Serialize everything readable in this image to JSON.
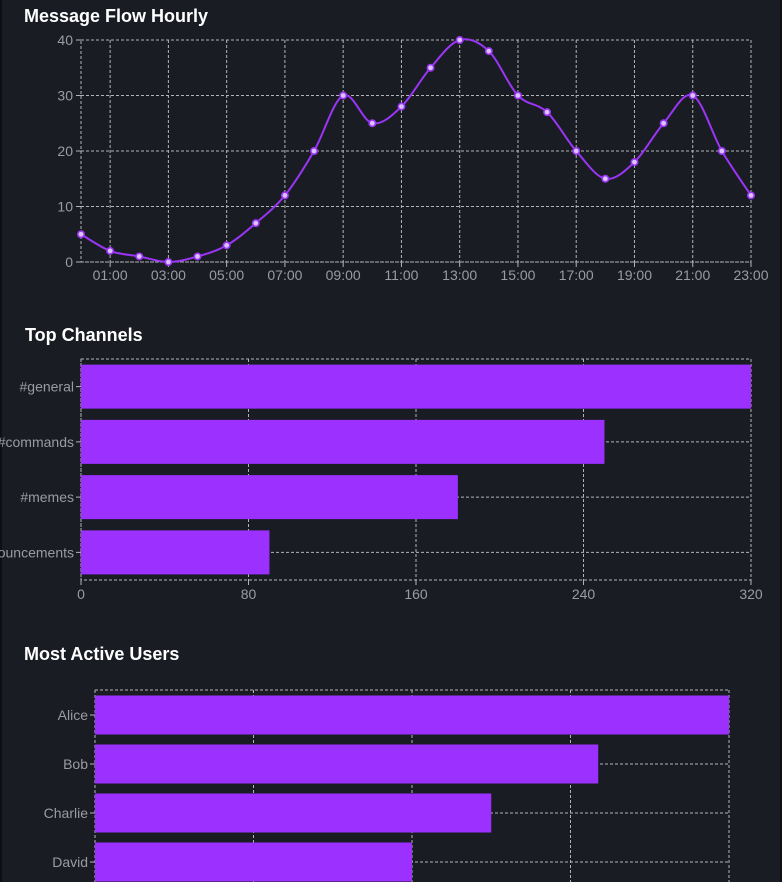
{
  "colors": {
    "background": "#1a1c24",
    "accent": "#9b30ff",
    "line": "#9a35f5",
    "grid": "#b4b4b4",
    "tick_text": "#9a9ba3",
    "title_text": "#ffffff"
  },
  "panels": {
    "hourly_title": "Message Flow Hourly",
    "channels_title": "Top Channels",
    "users_title": "Most Active Users"
  },
  "chart_data": [
    {
      "type": "line",
      "title": "Message Flow Hourly",
      "x": [
        "00:00",
        "01:00",
        "02:00",
        "03:00",
        "04:00",
        "05:00",
        "06:00",
        "07:00",
        "08:00",
        "09:00",
        "10:00",
        "11:00",
        "12:00",
        "13:00",
        "14:00",
        "15:00",
        "16:00",
        "17:00",
        "18:00",
        "19:00",
        "20:00",
        "21:00",
        "22:00",
        "23:00"
      ],
      "x_tick_labels": [
        "01:00",
        "03:00",
        "05:00",
        "07:00",
        "09:00",
        "11:00",
        "13:00",
        "15:00",
        "17:00",
        "19:00",
        "21:00",
        "23:00"
      ],
      "values": [
        5,
        2,
        1,
        0,
        1,
        3,
        7,
        12,
        20,
        30,
        25,
        28,
        35,
        40,
        38,
        30,
        27,
        20,
        15,
        18,
        25,
        30,
        20,
        12
      ],
      "ylim": [
        0,
        40
      ],
      "y_ticks": [
        0,
        10,
        20,
        30,
        40
      ],
      "grid": true,
      "smooth": true,
      "markers": true
    },
    {
      "type": "bar",
      "orientation": "horizontal",
      "title": "Top Channels",
      "categories": [
        "#general",
        "#commands",
        "#memes",
        "#announcements"
      ],
      "values": [
        320,
        250,
        180,
        90
      ],
      "xlim": [
        0,
        320
      ],
      "x_ticks": [
        0,
        80,
        160,
        240,
        320
      ],
      "grid": true
    },
    {
      "type": "bar",
      "orientation": "horizontal",
      "title": "Most Active Users",
      "categories": [
        "Alice",
        "Bob",
        "Charlie",
        "David"
      ],
      "values": [
        160,
        127,
        100,
        80
      ],
      "grid": true
    }
  ]
}
